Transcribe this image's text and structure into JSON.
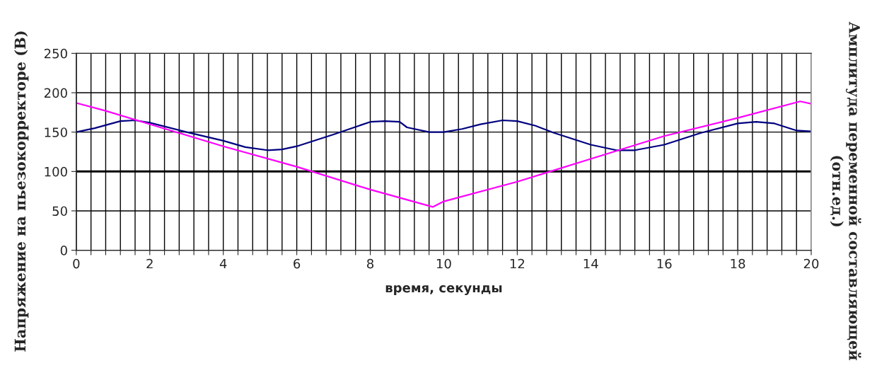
{
  "chart_data": {
    "type": "line",
    "xlabel": "время, секунды",
    "ylabel": "Напряжение на пьезокорректоре (В)",
    "y2label": "Амплитуда переменной составляющей\n(отн.ед.)",
    "xlim": [
      0,
      20
    ],
    "ylim": [
      0,
      250
    ],
    "yticks": [
      0,
      50,
      100,
      150,
      200,
      250
    ],
    "xticks": [
      0,
      {
        "value": 0.4,
        "label": null
      },
      {
        "value": 0.8,
        "label": null
      },
      {
        "value": 1.2,
        "label": null
      },
      {
        "value": 1.6,
        "label": null
      },
      2,
      {
        "value": 2.4,
        "label": null
      },
      {
        "value": 2.8,
        "label": null
      },
      {
        "value": 3.2,
        "label": null
      },
      {
        "value": 3.6,
        "label": null
      },
      4,
      {
        "value": 4.4,
        "label": null
      },
      {
        "value": 4.8,
        "label": null
      },
      {
        "value": 5.2,
        "label": null
      },
      {
        "value": 5.6,
        "label": null
      },
      6,
      {
        "value": 6.4,
        "label": null
      },
      {
        "value": 6.8,
        "label": null
      },
      {
        "value": 7.2,
        "label": null
      },
      {
        "value": 7.6,
        "label": null
      },
      8,
      {
        "value": 8.4,
        "label": null
      },
      {
        "value": 8.8,
        "label": null
      },
      {
        "value": 9.2,
        "label": null
      },
      {
        "value": 9.6,
        "label": null
      },
      10,
      {
        "value": 10.4,
        "label": null
      },
      {
        "value": 10.8,
        "label": null
      },
      {
        "value": 11.2,
        "label": null
      },
      {
        "value": 11.6,
        "label": null
      },
      12,
      {
        "value": 12.4,
        "label": null
      },
      {
        "value": 12.8,
        "label": null
      },
      {
        "value": 13.2,
        "label": null
      },
      {
        "value": 13.6,
        "label": null
      },
      14,
      {
        "value": 14.4,
        "label": null
      },
      {
        "value": 14.8,
        "label": null
      },
      {
        "value": 15.2,
        "label": null
      },
      {
        "value": 15.6,
        "label": null
      },
      16,
      {
        "value": 16.4,
        "label": null
      },
      {
        "value": 16.8,
        "label": null
      },
      {
        "value": 17.2,
        "label": null
      },
      {
        "value": 17.6,
        "label": null
      },
      18,
      {
        "value": 18.4,
        "label": null
      },
      {
        "value": 18.8,
        "label": null
      },
      {
        "value": 19.2,
        "label": null
      },
      {
        "value": 19.6,
        "label": null
      },
      20
    ],
    "grid": true,
    "marker": "none",
    "line_style": "solid",
    "ref_lines": [
      {
        "axis": "y",
        "value": 100,
        "color": "#000000"
      }
    ],
    "series": [
      {
        "color": "#000080",
        "x": [
          0,
          0.5,
          1.2,
          1.6,
          2,
          3,
          4,
          4.6,
          5.2,
          5.6,
          6,
          7,
          8,
          8.4,
          8.8,
          9,
          9.6,
          10,
          10.5,
          11,
          11.6,
          12,
          12.5,
          13,
          14,
          14.7,
          15.2,
          16,
          17,
          18,
          18.5,
          19,
          19.6,
          20
        ],
        "values": [
          150,
          155,
          164,
          165,
          162,
          150,
          139,
          131,
          127,
          128,
          132,
          147,
          163,
          164,
          163,
          156,
          150,
          150,
          154,
          160,
          165,
          164,
          158,
          149,
          134,
          127,
          127,
          134,
          149,
          161,
          163,
          161,
          152,
          151
        ]
      },
      {
        "color": "#ff00ff",
        "x": [
          0,
          0.8,
          2,
          4,
          6,
          8,
          9.7,
          10,
          12,
          14,
          16,
          18,
          19.7,
          20
        ],
        "values": [
          187,
          177,
          160,
          132,
          106,
          77,
          55,
          62,
          87,
          116,
          145,
          168,
          189,
          186
        ]
      }
    ]
  }
}
